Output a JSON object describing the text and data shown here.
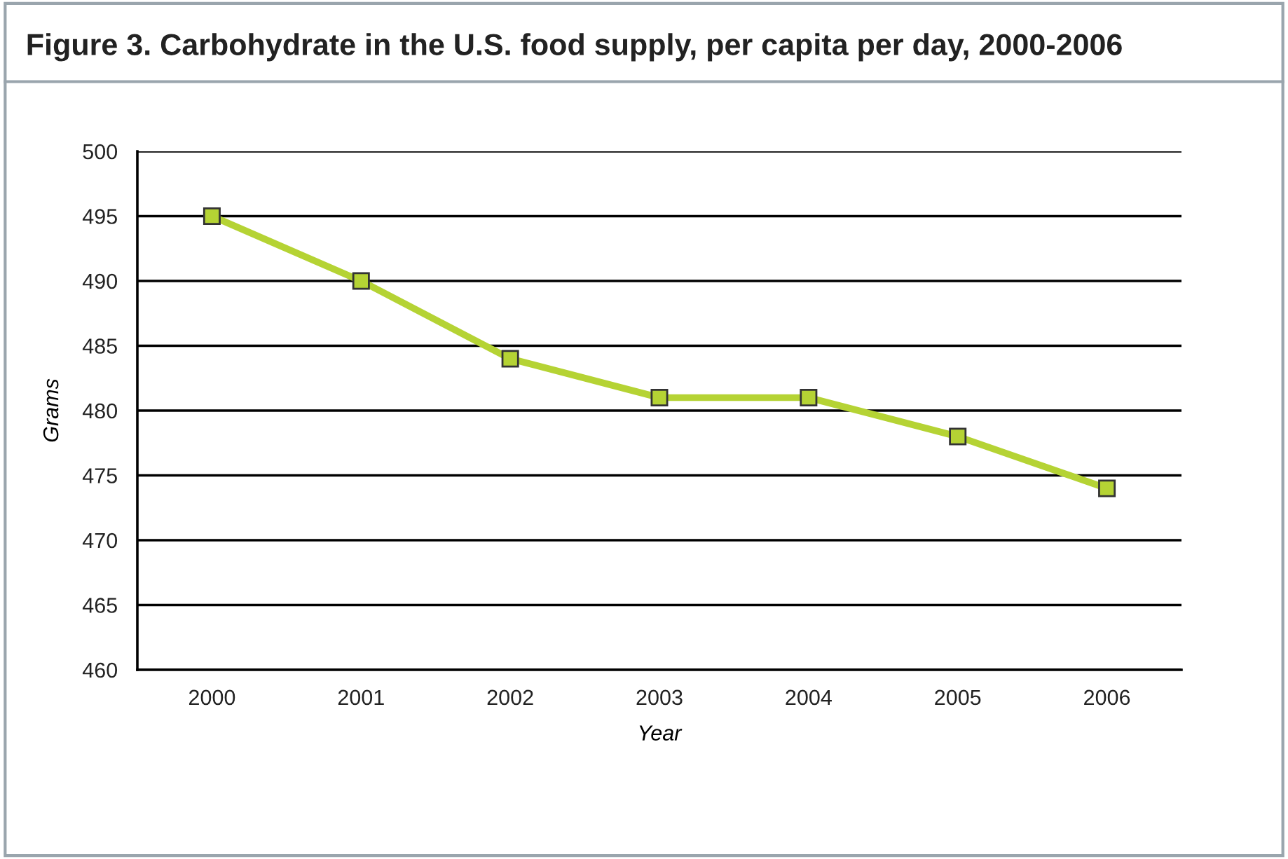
{
  "chart_data": {
    "type": "line",
    "title": "Figure 3. Carbohydrate in the U.S. food supply, per capita per day, 2000-2006",
    "xlabel": "Year",
    "ylabel": "Grams",
    "categories": [
      "2000",
      "2001",
      "2002",
      "2003",
      "2004",
      "2005",
      "2006"
    ],
    "series": [
      {
        "color": "#b5d334",
        "values": [
          495,
          490,
          484,
          481,
          481,
          478,
          474
        ]
      }
    ],
    "ylim": [
      460,
      500
    ],
    "yticks": [
      460,
      465,
      470,
      475,
      480,
      485,
      490,
      495,
      500
    ],
    "grid": "y",
    "marker": "square",
    "line_style": "solid"
  }
}
